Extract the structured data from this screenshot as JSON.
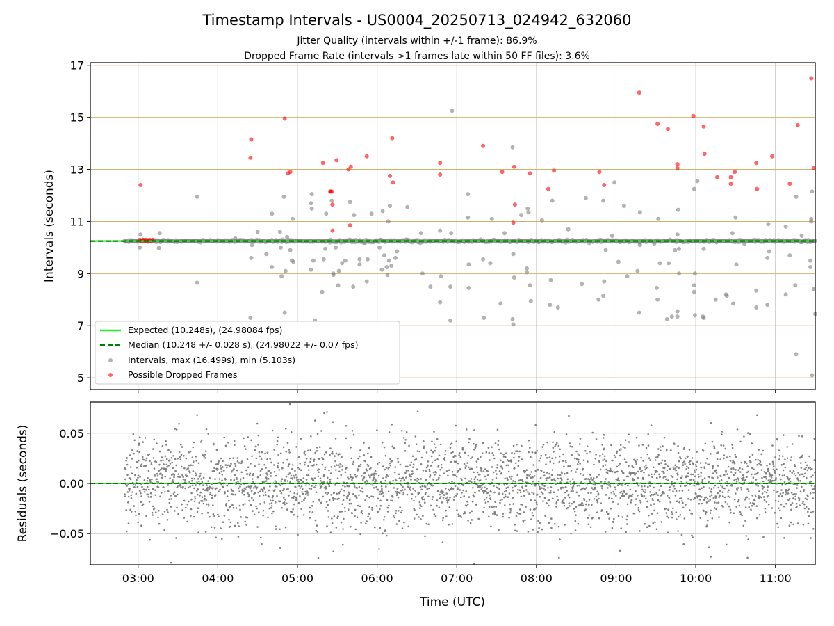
{
  "figure": {
    "title": "Timestamp Intervals - US0004_20250713_024942_632060",
    "subtitle_1": "Jitter Quality (intervals within +/-1 frame): 86.9%",
    "subtitle_2": "Dropped Frame Rate (intervals >1 frames late within 50 FF files): 3.6%"
  },
  "colors": {
    "expected": "#22ee22",
    "median": "#008000",
    "intervals": "#808080",
    "dropped": "#ff0000",
    "grid": "#c8c8c8",
    "frame_grid": "#d4b06a"
  },
  "chart_data": [
    {
      "type": "scatter",
      "name": "intervals_panel",
      "ylabel": "Intervals (seconds)",
      "ylim": [
        4.55,
        17.1
      ],
      "yticks": [
        5,
        7,
        9,
        11,
        13,
        15,
        17
      ],
      "ytick_labels": [
        "5",
        "7",
        "9",
        "11",
        "13",
        "15",
        "17"
      ],
      "xlim_hours": [
        2.4,
        11.5
      ],
      "xticks_hours": [
        3,
        4,
        5,
        6,
        7,
        8,
        9,
        10,
        11
      ],
      "xtick_labels": [
        "03:00",
        "04:00",
        "05:00",
        "06:00",
        "07:00",
        "08:00",
        "09:00",
        "10:00",
        "11:00"
      ],
      "grid": true,
      "frame_gridlines": [
        5,
        7,
        9,
        11,
        13,
        15,
        17
      ],
      "expected": 10.248,
      "median": 10.248,
      "legend_position": "lower-left",
      "legend": [
        "Expected (10.248s), (24.98084 fps)",
        "Median (10.248 +/- 0.028 s), (24.98022 +/- 0.07 fps)",
        "Intervals, max (16.499s), min (5.103s)",
        "Possible Dropped Frames"
      ],
      "outliers": [
        [
          3.03,
          10.5
        ],
        [
          3.02,
          10.0
        ],
        [
          3.27,
          10.55
        ],
        [
          3.26,
          9.98
        ],
        [
          3.74,
          11.95
        ],
        [
          3.74,
          8.65
        ],
        [
          4.22,
          10.35
        ],
        [
          4.41,
          7.3
        ],
        [
          4.42,
          9.6
        ],
        [
          4.43,
          10.1
        ],
        [
          4.5,
          10.6
        ],
        [
          4.61,
          9.75
        ],
        [
          4.68,
          9.25
        ],
        [
          4.68,
          11.3
        ],
        [
          4.78,
          10.6
        ],
        [
          4.79,
          10.0
        ],
        [
          4.8,
          8.9
        ],
        [
          4.83,
          11.95
        ],
        [
          4.84,
          7.5
        ],
        [
          4.85,
          9.1
        ],
        [
          4.87,
          10.4
        ],
        [
          4.91,
          9.9
        ],
        [
          4.94,
          11.1
        ],
        [
          4.95,
          9.45
        ],
        [
          4.93,
          9.5
        ],
        [
          5.17,
          11.7
        ],
        [
          5.17,
          9.15
        ],
        [
          5.18,
          11.5
        ],
        [
          5.18,
          12.05
        ],
        [
          5.2,
          9.5
        ],
        [
          5.22,
          7.2
        ],
        [
          5.31,
          8.3
        ],
        [
          5.33,
          9.55
        ],
        [
          5.35,
          9.95
        ],
        [
          5.36,
          11.3
        ],
        [
          5.43,
          11.8
        ],
        [
          5.45,
          9.0
        ],
        [
          5.45,
          8.95
        ],
        [
          5.48,
          10.0
        ],
        [
          5.51,
          8.55
        ],
        [
          5.52,
          9.1
        ],
        [
          5.56,
          9.4
        ],
        [
          5.6,
          9.5
        ],
        [
          5.66,
          11.75
        ],
        [
          5.7,
          8.5
        ],
        [
          5.71,
          11.25
        ],
        [
          5.78,
          9.55
        ],
        [
          5.78,
          9.35
        ],
        [
          5.87,
          8.7
        ],
        [
          5.88,
          9.55
        ],
        [
          5.93,
          11.3
        ],
        [
          6.03,
          10.0
        ],
        [
          6.06,
          9.15
        ],
        [
          6.07,
          11.4
        ],
        [
          6.09,
          9.7
        ],
        [
          6.12,
          9.25
        ],
        [
          6.13,
          8.95
        ],
        [
          6.14,
          11.0
        ],
        [
          6.15,
          9.5
        ],
        [
          6.16,
          11.6
        ],
        [
          6.18,
          9.3
        ],
        [
          6.23,
          9.6
        ],
        [
          6.25,
          9.85
        ],
        [
          6.38,
          11.55
        ],
        [
          6.55,
          10.55
        ],
        [
          6.57,
          9.0
        ],
        [
          6.67,
          8.5
        ],
        [
          6.79,
          10.65
        ],
        [
          6.79,
          7.9
        ],
        [
          6.8,
          8.9
        ],
        [
          6.92,
          8.5
        ],
        [
          6.94,
          15.25
        ],
        [
          6.92,
          7.2
        ],
        [
          6.93,
          10.55
        ],
        [
          7.14,
          12.05
        ],
        [
          7.14,
          11.15
        ],
        [
          7.15,
          9.35
        ],
        [
          7.15,
          8.45
        ],
        [
          7.33,
          9.55
        ],
        [
          7.34,
          7.3
        ],
        [
          7.42,
          9.4
        ],
        [
          7.44,
          11.1
        ],
        [
          7.55,
          7.85
        ],
        [
          7.6,
          10.55
        ],
        [
          7.71,
          9.75
        ],
        [
          7.71,
          7.05
        ],
        [
          7.72,
          8.85
        ],
        [
          7.7,
          7.25
        ],
        [
          7.7,
          13.85
        ],
        [
          7.81,
          11.25
        ],
        [
          7.88,
          9.05
        ],
        [
          7.88,
          9.2
        ],
        [
          7.89,
          11.5
        ],
        [
          7.9,
          11.35
        ],
        [
          7.92,
          8.55
        ],
        [
          7.93,
          7.95
        ],
        [
          8.03,
          10.2
        ],
        [
          8.07,
          11.05
        ],
        [
          8.17,
          7.8
        ],
        [
          8.18,
          8.75
        ],
        [
          8.2,
          11.8
        ],
        [
          8.27,
          7.7
        ],
        [
          8.4,
          10.7
        ],
        [
          8.57,
          8.6
        ],
        [
          8.62,
          11.9
        ],
        [
          8.78,
          8.0
        ],
        [
          8.84,
          8.15
        ],
        [
          8.84,
          11.8
        ],
        [
          8.85,
          8.7
        ],
        [
          8.87,
          9.9
        ],
        [
          8.95,
          10.45
        ],
        [
          8.98,
          12.5
        ],
        [
          9.03,
          9.45
        ],
        [
          9.1,
          11.6
        ],
        [
          9.14,
          8.9
        ],
        [
          9.27,
          9.1
        ],
        [
          9.29,
          7.5
        ],
        [
          9.3,
          11.35
        ],
        [
          9.3,
          10.1
        ],
        [
          9.48,
          10.15
        ],
        [
          9.51,
          8.45
        ],
        [
          9.52,
          8.0
        ],
        [
          9.53,
          11.1
        ],
        [
          9.55,
          9.4
        ],
        [
          9.64,
          7.25
        ],
        [
          9.66,
          9.4
        ],
        [
          9.7,
          7.35
        ],
        [
          9.74,
          9.9
        ],
        [
          9.77,
          7.55
        ],
        [
          9.77,
          7.35
        ],
        [
          9.77,
          10.5
        ],
        [
          9.78,
          11.45
        ],
        [
          9.79,
          9.0
        ],
        [
          9.79,
          9.95
        ],
        [
          9.98,
          8.3
        ],
        [
          9.98,
          8.55
        ],
        [
          9.98,
          12.25
        ],
        [
          9.99,
          7.4
        ],
        [
          9.99,
          9.0
        ],
        [
          10.0,
          10.25
        ],
        [
          10.02,
          12.55
        ],
        [
          10.09,
          7.35
        ],
        [
          10.1,
          7.3
        ],
        [
          10.1,
          9.95
        ],
        [
          10.25,
          8.0
        ],
        [
          10.26,
          10.2
        ],
        [
          10.38,
          8.2
        ],
        [
          10.39,
          8.15
        ],
        [
          10.46,
          10.55
        ],
        [
          10.47,
          7.85
        ],
        [
          10.5,
          11.15
        ],
        [
          10.51,
          9.35
        ],
        [
          10.61,
          10.15
        ],
        [
          10.76,
          7.7
        ],
        [
          10.76,
          8.35
        ],
        [
          10.9,
          7.8
        ],
        [
          10.9,
          9.6
        ],
        [
          10.91,
          10.9
        ],
        [
          10.92,
          9.85
        ],
        [
          11.13,
          8.2
        ],
        [
          11.13,
          10.8
        ],
        [
          11.18,
          9.7
        ],
        [
          11.25,
          8.55
        ],
        [
          11.26,
          5.9
        ],
        [
          11.26,
          11.95
        ],
        [
          11.33,
          10.45
        ],
        [
          11.44,
          9.5
        ],
        [
          11.44,
          9.25
        ],
        [
          11.45,
          11.0
        ],
        [
          11.45,
          11.1
        ],
        [
          11.46,
          12.15
        ],
        [
          11.46,
          5.1
        ],
        [
          11.48,
          8.4
        ],
        [
          11.5,
          7.45
        ]
      ],
      "dropped": [
        [
          3.03,
          12.4
        ],
        [
          3.02,
          10.3
        ],
        [
          3.04,
          10.25
        ],
        [
          3.06,
          10.3
        ],
        [
          3.08,
          10.25
        ],
        [
          3.1,
          10.3
        ],
        [
          3.12,
          10.25
        ],
        [
          3.14,
          10.3
        ],
        [
          3.16,
          10.25
        ],
        [
          3.18,
          10.3
        ],
        [
          4.42,
          14.15
        ],
        [
          4.41,
          13.45
        ],
        [
          4.84,
          14.95
        ],
        [
          4.88,
          12.85
        ],
        [
          4.91,
          12.9
        ],
        [
          5.32,
          13.25
        ],
        [
          5.41,
          12.15
        ],
        [
          5.42,
          12.15
        ],
        [
          5.43,
          12.15
        ],
        [
          5.44,
          11.65
        ],
        [
          5.44,
          10.65
        ],
        [
          5.49,
          13.35
        ],
        [
          5.64,
          13.0
        ],
        [
          5.67,
          13.1
        ],
        [
          5.66,
          10.85
        ],
        [
          5.87,
          13.5
        ],
        [
          6.16,
          12.75
        ],
        [
          6.19,
          14.2
        ],
        [
          6.2,
          12.5
        ],
        [
          6.79,
          13.25
        ],
        [
          6.79,
          12.8
        ],
        [
          7.33,
          13.9
        ],
        [
          7.57,
          12.9
        ],
        [
          7.72,
          13.1
        ],
        [
          7.73,
          11.65
        ],
        [
          7.71,
          10.95
        ],
        [
          7.92,
          12.85
        ],
        [
          8.15,
          12.25
        ],
        [
          8.22,
          12.95
        ],
        [
          8.79,
          12.9
        ],
        [
          8.85,
          12.4
        ],
        [
          9.29,
          15.95
        ],
        [
          9.52,
          14.75
        ],
        [
          9.65,
          14.55
        ],
        [
          9.77,
          13.2
        ],
        [
          9.77,
          13.05
        ],
        [
          9.97,
          15.05
        ],
        [
          10.1,
          14.65
        ],
        [
          10.11,
          13.6
        ],
        [
          10.27,
          12.7
        ],
        [
          10.44,
          12.7
        ],
        [
          10.44,
          12.45
        ],
        [
          10.49,
          12.9
        ],
        [
          10.76,
          13.25
        ],
        [
          10.77,
          12.25
        ],
        [
          10.96,
          13.5
        ],
        [
          11.18,
          12.45
        ],
        [
          11.28,
          14.7
        ],
        [
          11.45,
          16.5
        ],
        [
          11.48,
          13.05
        ]
      ]
    },
    {
      "type": "scatter",
      "name": "residuals_panel",
      "xlabel": "Time (UTC)",
      "ylabel": "Residuals (seconds)",
      "ylim": [
        -0.081,
        0.081
      ],
      "yticks": [
        0.05,
        0.0,
        -0.05
      ],
      "ytick_labels": [
        "0.05",
        "0.00",
        "−0.05"
      ],
      "xlim_hours": [
        2.4,
        11.5
      ],
      "xticks_hours": [
        3,
        4,
        5,
        6,
        7,
        8,
        9,
        10,
        11
      ],
      "xtick_labels": [
        "03:00",
        "04:00",
        "05:00",
        "06:00",
        "07:00",
        "08:00",
        "09:00",
        "10:00",
        "11:00"
      ],
      "grid": true,
      "zero_line": 0.0,
      "residual_sd": 0.022,
      "residual_start_hour": 2.83,
      "residual_end_hour": 11.5,
      "residual_points": 2900,
      "highlighted_residuals": [
        [
          3.74,
          0.068
        ],
        [
          5.37,
          0.071
        ],
        [
          7.22,
          0.053
        ],
        [
          7.99,
          0.058
        ],
        [
          10.19,
          0.06
        ],
        [
          10.77,
          0.068
        ],
        [
          7.22,
          -0.08
        ],
        [
          5.57,
          -0.061
        ],
        [
          10.19,
          -0.073
        ],
        [
          10.65,
          -0.074
        ],
        [
          9.05,
          -0.067
        ],
        [
          3.04,
          -0.042
        ]
      ]
    }
  ]
}
